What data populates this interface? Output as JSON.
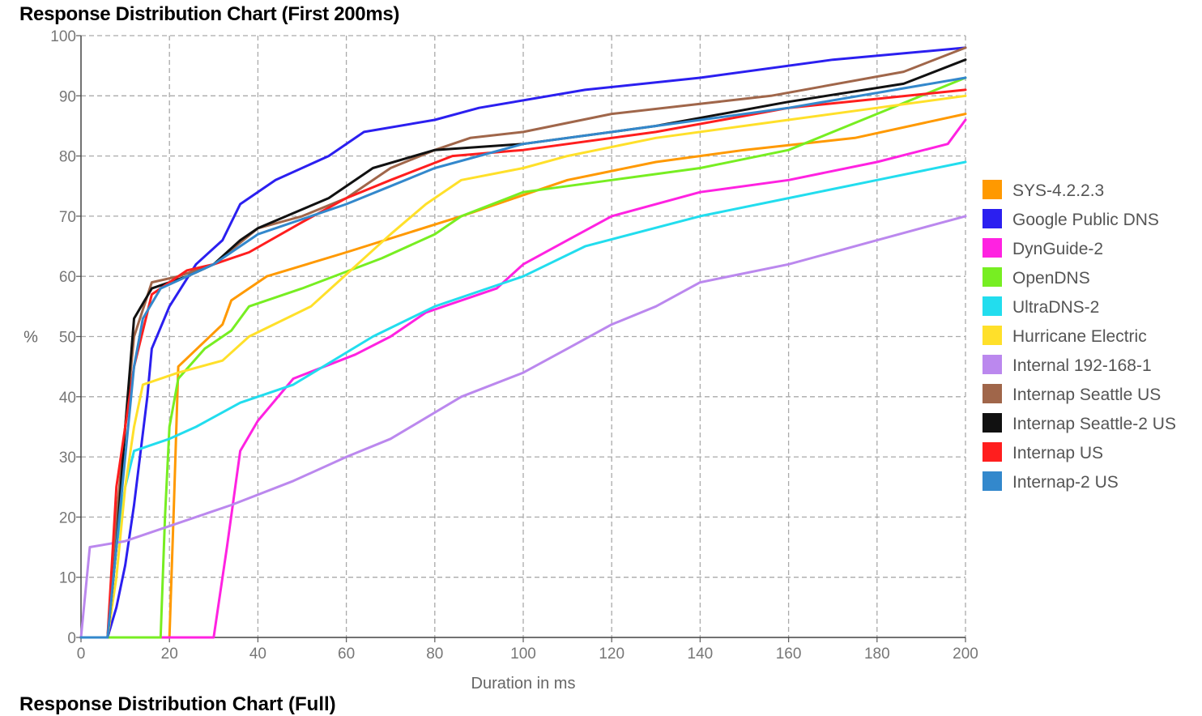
{
  "page": {
    "title": "Response Distribution Chart (First 200ms)",
    "next_title": "Response Distribution Chart (Full)"
  },
  "chart_data": {
    "type": "line",
    "title": "Response Distribution Chart (First 200ms)",
    "xlabel": "Duration in ms",
    "ylabel": "%",
    "xlim": [
      0,
      200
    ],
    "ylim": [
      0,
      100
    ],
    "xticks": [
      0,
      20,
      40,
      60,
      80,
      100,
      120,
      140,
      160,
      180,
      200
    ],
    "yticks": [
      0,
      10,
      20,
      30,
      40,
      50,
      60,
      70,
      80,
      90,
      100
    ],
    "grid": true,
    "legend_position": "right",
    "series": [
      {
        "name": "SYS-4.2.2.3",
        "color": "#ff9900",
        "points": [
          [
            0,
            0
          ],
          [
            20,
            0
          ],
          [
            21,
            22
          ],
          [
            22,
            45
          ],
          [
            32,
            52
          ],
          [
            34,
            56
          ],
          [
            42,
            60
          ],
          [
            60,
            64
          ],
          [
            86,
            70
          ],
          [
            110,
            76
          ],
          [
            130,
            79
          ],
          [
            150,
            81
          ],
          [
            175,
            83
          ],
          [
            200,
            87
          ]
        ]
      },
      {
        "name": "Google Public DNS",
        "color": "#2b1ff0",
        "points": [
          [
            0,
            0
          ],
          [
            6,
            0
          ],
          [
            8,
            5
          ],
          [
            10,
            12
          ],
          [
            12,
            22
          ],
          [
            15,
            40
          ],
          [
            16,
            48
          ],
          [
            20,
            55
          ],
          [
            26,
            62
          ],
          [
            32,
            66
          ],
          [
            36,
            72
          ],
          [
            44,
            76
          ],
          [
            56,
            80
          ],
          [
            64,
            84
          ],
          [
            80,
            86
          ],
          [
            90,
            88
          ],
          [
            114,
            91
          ],
          [
            140,
            93
          ],
          [
            170,
            96
          ],
          [
            200,
            98
          ]
        ]
      },
      {
        "name": "DynGuide-2",
        "color": "#ff22e1",
        "points": [
          [
            0,
            0
          ],
          [
            30,
            0
          ],
          [
            33,
            15
          ],
          [
            36,
            31
          ],
          [
            40,
            36
          ],
          [
            48,
            43
          ],
          [
            62,
            47
          ],
          [
            70,
            50
          ],
          [
            78,
            54
          ],
          [
            94,
            58
          ],
          [
            100,
            62
          ],
          [
            110,
            66
          ],
          [
            120,
            70
          ],
          [
            140,
            74
          ],
          [
            160,
            76
          ],
          [
            180,
            79
          ],
          [
            196,
            82
          ],
          [
            200,
            86
          ]
        ]
      },
      {
        "name": "OpenDNS",
        "color": "#77ee22",
        "points": [
          [
            0,
            0
          ],
          [
            18,
            0
          ],
          [
            19,
            20
          ],
          [
            20,
            35
          ],
          [
            22,
            43
          ],
          [
            28,
            48
          ],
          [
            34,
            51
          ],
          [
            38,
            55
          ],
          [
            50,
            58
          ],
          [
            68,
            63
          ],
          [
            80,
            67
          ],
          [
            86,
            70
          ],
          [
            100,
            74
          ],
          [
            120,
            76
          ],
          [
            140,
            78
          ],
          [
            160,
            81
          ],
          [
            180,
            87
          ],
          [
            200,
            93
          ]
        ]
      },
      {
        "name": "UltraDNS-2",
        "color": "#22ddee",
        "points": [
          [
            0,
            0
          ],
          [
            6,
            0
          ],
          [
            8,
            15
          ],
          [
            10,
            25
          ],
          [
            12,
            31
          ],
          [
            20,
            33
          ],
          [
            26,
            35
          ],
          [
            36,
            39
          ],
          [
            48,
            42
          ],
          [
            66,
            50
          ],
          [
            80,
            55
          ],
          [
            100,
            60
          ],
          [
            114,
            65
          ],
          [
            140,
            70
          ],
          [
            160,
            73
          ],
          [
            180,
            76
          ],
          [
            200,
            79
          ]
        ]
      },
      {
        "name": "Hurricane Electric",
        "color": "#ffe02a",
        "points": [
          [
            0,
            0
          ],
          [
            6,
            0
          ],
          [
            8,
            10
          ],
          [
            10,
            25
          ],
          [
            12,
            35
          ],
          [
            14,
            42
          ],
          [
            22,
            44
          ],
          [
            32,
            46
          ],
          [
            38,
            50
          ],
          [
            52,
            55
          ],
          [
            58,
            59
          ],
          [
            70,
            67
          ],
          [
            78,
            72
          ],
          [
            86,
            76
          ],
          [
            100,
            78
          ],
          [
            110,
            80
          ],
          [
            130,
            83
          ],
          [
            160,
            86
          ],
          [
            180,
            88
          ],
          [
            200,
            90
          ]
        ]
      },
      {
        "name": "Internal 192-168-1",
        "color": "#bb88ee",
        "points": [
          [
            0,
            0
          ],
          [
            2,
            15
          ],
          [
            10,
            16
          ],
          [
            22,
            19
          ],
          [
            34,
            22
          ],
          [
            48,
            26
          ],
          [
            60,
            30
          ],
          [
            70,
            33
          ],
          [
            86,
            40
          ],
          [
            100,
            44
          ],
          [
            110,
            48
          ],
          [
            120,
            52
          ],
          [
            130,
            55
          ],
          [
            140,
            59
          ],
          [
            160,
            62
          ],
          [
            180,
            66
          ],
          [
            200,
            70
          ]
        ]
      },
      {
        "name": "Internap Seattle US",
        "color": "#a0664a",
        "points": [
          [
            0,
            0
          ],
          [
            6,
            0
          ],
          [
            8,
            20
          ],
          [
            10,
            35
          ],
          [
            12,
            50
          ],
          [
            16,
            59
          ],
          [
            22,
            60
          ],
          [
            30,
            62
          ],
          [
            40,
            68
          ],
          [
            50,
            70
          ],
          [
            60,
            73
          ],
          [
            70,
            78
          ],
          [
            80,
            81
          ],
          [
            88,
            83
          ],
          [
            100,
            84
          ],
          [
            120,
            87
          ],
          [
            156,
            90
          ],
          [
            186,
            94
          ],
          [
            200,
            98
          ]
        ]
      },
      {
        "name": "Internap Seattle-2 US",
        "color": "#111111",
        "points": [
          [
            0,
            0
          ],
          [
            6,
            0
          ],
          [
            8,
            15
          ],
          [
            10,
            35
          ],
          [
            12,
            53
          ],
          [
            16,
            58
          ],
          [
            24,
            60
          ],
          [
            30,
            62
          ],
          [
            36,
            66
          ],
          [
            40,
            68
          ],
          [
            56,
            73
          ],
          [
            66,
            78
          ],
          [
            80,
            81
          ],
          [
            100,
            82
          ],
          [
            130,
            85
          ],
          [
            160,
            89
          ],
          [
            186,
            92
          ],
          [
            200,
            96
          ]
        ]
      },
      {
        "name": "Internap US",
        "color": "#ff1e1e",
        "points": [
          [
            0,
            0
          ],
          [
            6,
            0
          ],
          [
            8,
            25
          ],
          [
            10,
            35
          ],
          [
            12,
            45
          ],
          [
            16,
            57
          ],
          [
            24,
            61
          ],
          [
            30,
            62
          ],
          [
            38,
            64
          ],
          [
            50,
            69
          ],
          [
            60,
            73
          ],
          [
            70,
            76
          ],
          [
            84,
            80
          ],
          [
            100,
            81
          ],
          [
            130,
            84
          ],
          [
            160,
            88
          ],
          [
            200,
            91
          ]
        ]
      },
      {
        "name": "Internap-2 US",
        "color": "#3388cc",
        "points": [
          [
            0,
            0
          ],
          [
            6,
            0
          ],
          [
            8,
            15
          ],
          [
            10,
            30
          ],
          [
            12,
            45
          ],
          [
            14,
            53
          ],
          [
            18,
            58
          ],
          [
            30,
            62
          ],
          [
            40,
            67
          ],
          [
            60,
            72
          ],
          [
            70,
            75
          ],
          [
            80,
            78
          ],
          [
            100,
            82
          ],
          [
            130,
            85
          ],
          [
            160,
            88
          ],
          [
            200,
            93
          ]
        ]
      }
    ]
  }
}
